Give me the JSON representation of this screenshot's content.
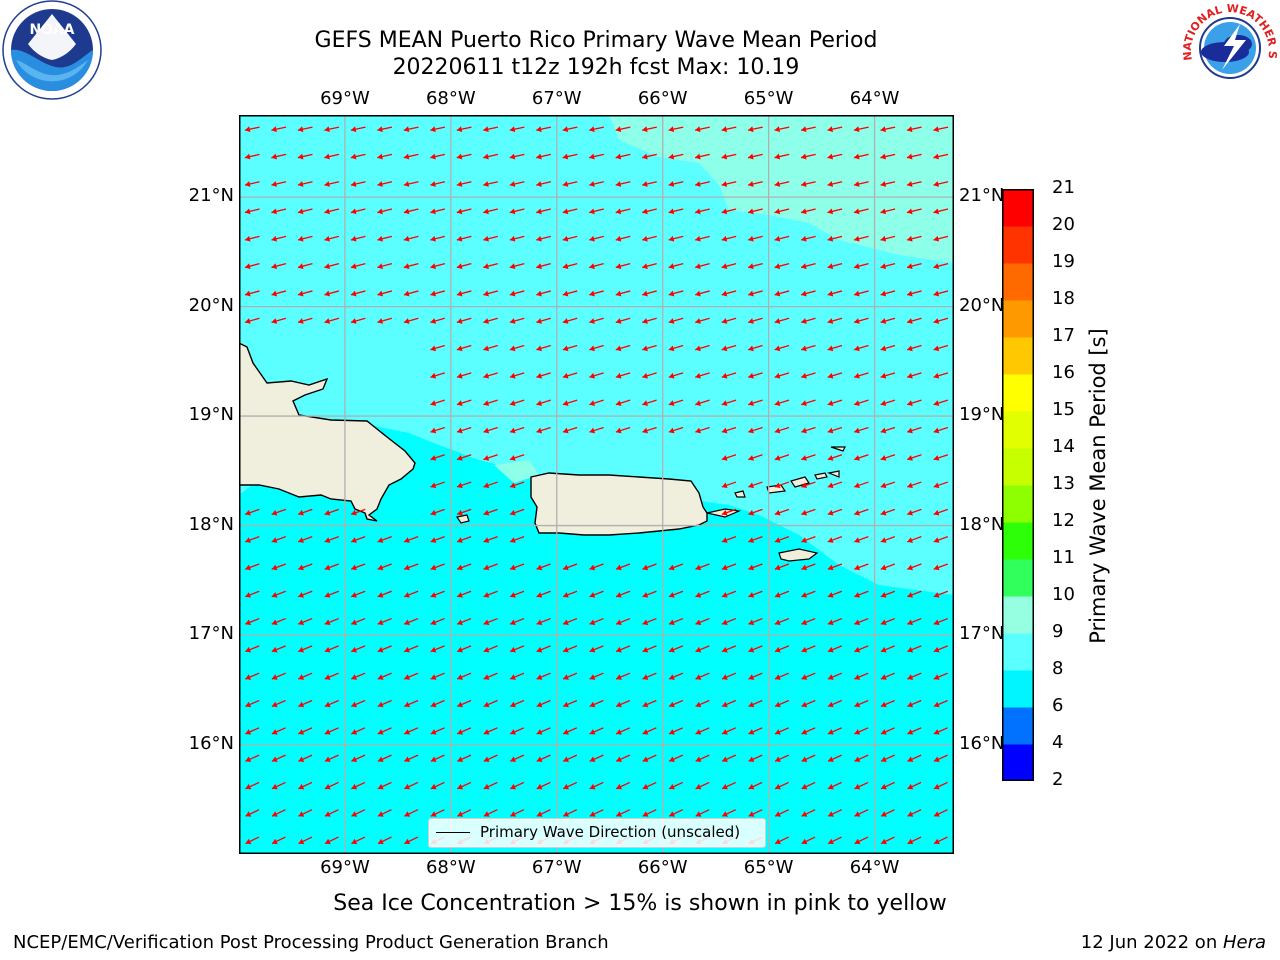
{
  "title": {
    "line1": "GEFS MEAN Puerto Rico Primary Wave Mean Period",
    "line2": "20220611 t12z 192h fcst   Max: 10.19"
  },
  "chart_data": {
    "type": "map",
    "variable": "Primary Wave Mean Period",
    "units": "s",
    "max_value": 10.19,
    "lon_ticks": [
      "69°W",
      "68°W",
      "67°W",
      "66°W",
      "65°W",
      "64°W"
    ],
    "lat_ticks": [
      "21°N",
      "20°N",
      "19°N",
      "18°N",
      "17°N",
      "16°N"
    ],
    "lon_values": [
      -69,
      -68,
      -67,
      -66,
      -65,
      -64
    ],
    "lat_values": [
      21,
      20,
      19,
      18,
      17,
      16
    ],
    "lon_range": [
      -70,
      -63.25
    ],
    "lat_range": [
      15,
      21.75
    ],
    "grid": true,
    "colorbar": {
      "label": "Primary Wave Mean Period [s]",
      "ticks": [
        "2",
        "4",
        "6",
        "8",
        "9",
        "10",
        "11",
        "12",
        "13",
        "14",
        "15",
        "16",
        "17",
        "18",
        "19",
        "20",
        "21"
      ],
      "boundaries": [
        2,
        4,
        6,
        8,
        9,
        10,
        11,
        12,
        13,
        14,
        15,
        16,
        17,
        18,
        19,
        20,
        21
      ],
      "colors": [
        "#0000ff",
        "#0072ff",
        "#00f5ff",
        "#5affff",
        "#97ffe1",
        "#31ff5c",
        "#2cff08",
        "#8eff00",
        "#c8ff00",
        "#e2ff00",
        "#ffff00",
        "#ffc800",
        "#ff9900",
        "#ff6a00",
        "#ff3300",
        "#ff0000"
      ]
    },
    "legend": {
      "label": "Primary Wave Direction (unscaled)",
      "placement": "bottom-center"
    },
    "vector_direction": "toward west-southwest"
  },
  "footer": {
    "note": "Sea Ice Concentration > 15% is shown in pink to yellow",
    "left": "NCEP/EMC/Verification Post Processing Product Generation Branch",
    "right_date": "12 Jun 2022 on ",
    "right_host": "Hera"
  },
  "logos": {
    "left": "NOAA",
    "right": "NATIONAL WEATHER SERVICE"
  },
  "colors": {
    "sea_base": "#00ffff",
    "sea_mid": "#5cffff",
    "sea_high": "#8effe8",
    "land": "#f0eedc",
    "arrow": "#ff0000"
  }
}
